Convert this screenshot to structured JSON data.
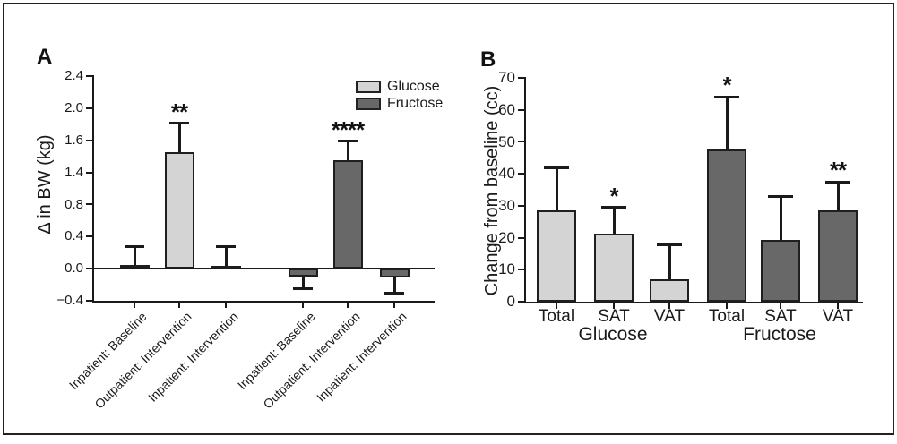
{
  "figure_frame": true,
  "colors": {
    "glucose_fill": "#d4d4d4",
    "fructose_fill": "#686868",
    "axis": "#1a1a1a"
  },
  "chart_data": [
    {
      "panel_label": "A",
      "type": "bar",
      "title": "",
      "xlabel": "",
      "ylabel": "Δ in BW (kg)",
      "ylim": [
        -0.4,
        2.4
      ],
      "ytick_labels": [
        "2.4",
        "2.0",
        "1.6",
        "1.4",
        "0.8",
        "0.4",
        "0.0",
        "−0.4"
      ],
      "grid": false,
      "legend_position": "top-right",
      "categories": [
        "Inpatient: Baseline",
        "Outpatient: Intervention",
        "Inpatient: Intervention"
      ],
      "series": [
        {
          "name": "Glucose",
          "color": "#d4d4d4",
          "values": [
            0.05,
            1.45,
            0.03
          ],
          "errors": [
            0.23,
            0.36,
            0.24
          ],
          "significance": [
            "",
            "**",
            ""
          ]
        },
        {
          "name": "Fructose",
          "color": "#686868",
          "values": [
            -0.1,
            1.35,
            -0.11
          ],
          "errors": [
            0.15,
            0.24,
            0.2
          ],
          "significance": [
            "",
            "****",
            ""
          ]
        }
      ]
    },
    {
      "panel_label": "B",
      "type": "bar",
      "title": "",
      "xlabel": "",
      "ylabel": "Change from baseline (cc)",
      "ylim": [
        0,
        70
      ],
      "ytick_labels": [
        "70",
        "60",
        "50",
        "40",
        "30",
        "20",
        "10",
        "0"
      ],
      "grid": false,
      "legend_position": "none",
      "categories": [
        "Total",
        "SAT",
        "VAT"
      ],
      "group_labels": [
        "Glucose",
        "Fructose"
      ],
      "series": [
        {
          "name": "Glucose",
          "color": "#d4d4d4",
          "values": [
            28.5,
            21.2,
            7.0
          ],
          "errors": [
            13.5,
            8.3,
            10.8
          ],
          "significance": [
            "",
            "*",
            ""
          ]
        },
        {
          "name": "Fructose",
          "color": "#686868",
          "values": [
            47.7,
            19.2,
            28.6
          ],
          "errors": [
            16.3,
            13.8,
            8.9
          ],
          "significance": [
            "*",
            "",
            "**"
          ]
        }
      ]
    }
  ]
}
